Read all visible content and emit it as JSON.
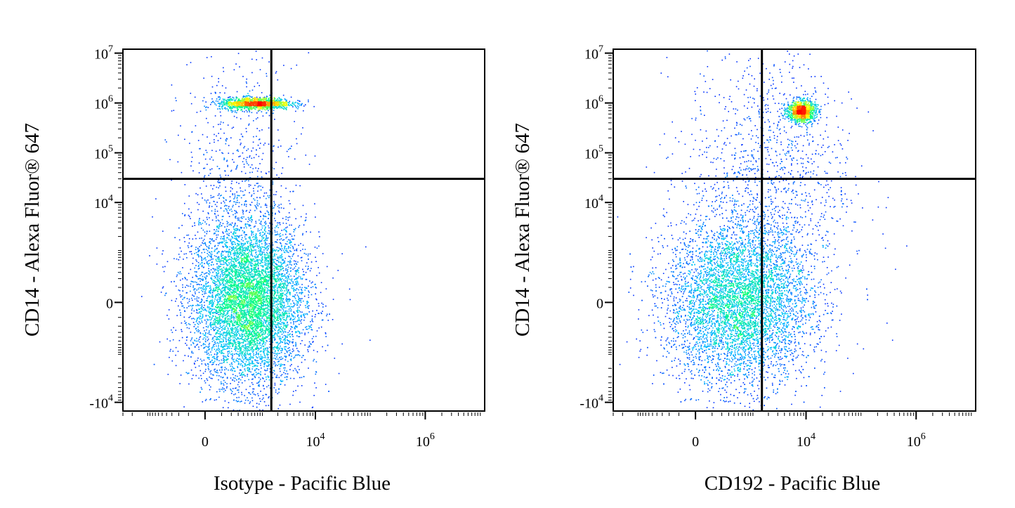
{
  "chart_data": [
    {
      "type": "scatter",
      "subtype": "flow-cytometry-density-dot-plot",
      "xlabel": "Isotype - Pacific Blue",
      "ylabel": "CD14 - Alexa Fluor® 647",
      "x_scale": "biexponential",
      "y_scale": "biexponential",
      "x_ticks": [
        {
          "value": 0,
          "base": "0",
          "exp": ""
        },
        {
          "value": 10000,
          "base": "10",
          "exp": "4"
        },
        {
          "value": 1000000,
          "base": "10",
          "exp": "6"
        }
      ],
      "y_ticks": [
        {
          "value": 10000000,
          "base": "10",
          "exp": "7"
        },
        {
          "value": 1000000,
          "base": "10",
          "exp": "6"
        },
        {
          "value": 100000,
          "base": "10",
          "exp": "5"
        },
        {
          "value": 10000,
          "base": "10",
          "exp": "4"
        },
        {
          "value": 0,
          "base": "0",
          "exp": ""
        },
        {
          "value": -10000,
          "base": "-10",
          "exp": "4"
        }
      ],
      "quadrant_gate": {
        "x": 1500,
        "y": 30000
      },
      "color_scale": [
        "#0000ff",
        "#00c0ff",
        "#00ff80",
        "#ffff00",
        "#ff8000",
        "#ff0000"
      ],
      "populations": [
        {
          "x_center": 500,
          "y_center": 0,
          "x_spread": 900,
          "y_spread": 3000,
          "weight": 0.78
        },
        {
          "x_center": 700,
          "y_center": 1000000,
          "x_spread": 700,
          "y_spread": 250000,
          "weight": 0.14
        },
        {
          "x_center": 300,
          "y_center": 20000,
          "x_spread": 900,
          "y_spread": 30000,
          "weight": 0.08
        }
      ]
    },
    {
      "type": "scatter",
      "subtype": "flow-cytometry-density-dot-plot",
      "xlabel": "CD192 - Pacific Blue",
      "ylabel": "CD14 - Alexa Fluor® 647",
      "x_scale": "biexponential",
      "y_scale": "biexponential",
      "x_ticks": [
        {
          "value": 0,
          "base": "0",
          "exp": ""
        },
        {
          "value": 10000,
          "base": "10",
          "exp": "4"
        },
        {
          "value": 1000000,
          "base": "10",
          "exp": "6"
        }
      ],
      "y_ticks": [
        {
          "value": 10000000,
          "base": "10",
          "exp": "7"
        },
        {
          "value": 1000000,
          "base": "10",
          "exp": "6"
        },
        {
          "value": 100000,
          "base": "10",
          "exp": "5"
        },
        {
          "value": 10000,
          "base": "10",
          "exp": "4"
        },
        {
          "value": 0,
          "base": "0",
          "exp": ""
        },
        {
          "value": -10000,
          "base": "-10",
          "exp": "4"
        }
      ],
      "quadrant_gate": {
        "x": 1500,
        "y": 30000
      },
      "color_scale": [
        "#0000ff",
        "#00c0ff",
        "#00ff80",
        "#ffff00",
        "#ff8000",
        "#ff0000"
      ],
      "populations": [
        {
          "x_center": 500,
          "y_center": 0,
          "x_spread": 1500,
          "y_spread": 3000,
          "weight": 0.74
        },
        {
          "x_center": 8000,
          "y_center": 700000,
          "x_spread": 4000,
          "y_spread": 300000,
          "weight": 0.12
        },
        {
          "x_center": 2000,
          "y_center": 30000,
          "x_spread": 3000,
          "y_spread": 40000,
          "weight": 0.14
        }
      ]
    }
  ]
}
